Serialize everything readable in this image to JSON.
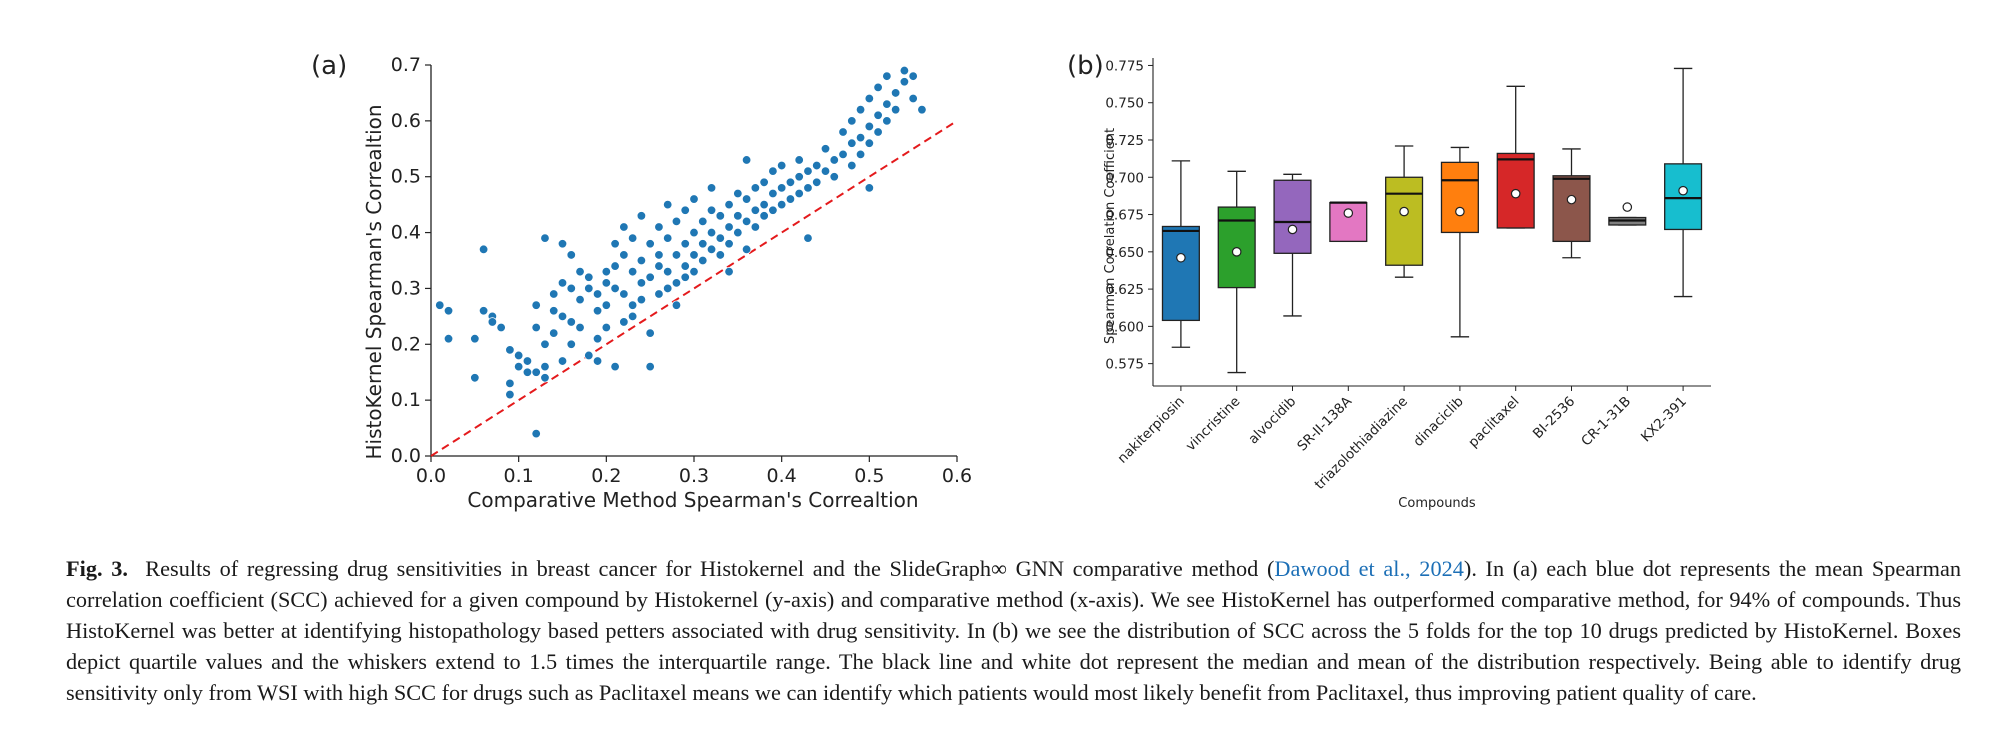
{
  "panel_labels": [
    "(a)",
    "(b)"
  ],
  "chart_data": [
    {
      "type": "scatter",
      "panel": "(a)",
      "title": "",
      "xlabel": "Comparative Method Spearman's Correaltion",
      "ylabel": "HistoKernel Spearman's Correaltion",
      "xlim": [
        0.0,
        0.6
      ],
      "ylim": [
        0.0,
        0.7
      ],
      "xticks": [
        "0.0",
        "0.1",
        "0.2",
        "0.3",
        "0.4",
        "0.5",
        "0.6"
      ],
      "yticks": [
        "0.0",
        "0.1",
        "0.2",
        "0.3",
        "0.4",
        "0.5",
        "0.6",
        "0.7"
      ],
      "point_color": "#1f77b4",
      "reference_line": {
        "x": [
          0.0,
          0.6
        ],
        "y": [
          0.0,
          0.6
        ],
        "color": "#e41a1c",
        "style": "dashed"
      },
      "points": [
        [
          0.01,
          0.27
        ],
        [
          0.02,
          0.26
        ],
        [
          0.02,
          0.21
        ],
        [
          0.05,
          0.14
        ],
        [
          0.05,
          0.21
        ],
        [
          0.06,
          0.26
        ],
        [
          0.07,
          0.25
        ],
        [
          0.06,
          0.37
        ],
        [
          0.07,
          0.24
        ],
        [
          0.08,
          0.23
        ],
        [
          0.09,
          0.19
        ],
        [
          0.09,
          0.13
        ],
        [
          0.09,
          0.11
        ],
        [
          0.1,
          0.18
        ],
        [
          0.1,
          0.16
        ],
        [
          0.11,
          0.17
        ],
        [
          0.11,
          0.15
        ],
        [
          0.12,
          0.23
        ],
        [
          0.12,
          0.27
        ],
        [
          0.12,
          0.04
        ],
        [
          0.12,
          0.15
        ],
        [
          0.13,
          0.16
        ],
        [
          0.13,
          0.2
        ],
        [
          0.13,
          0.39
        ],
        [
          0.13,
          0.14
        ],
        [
          0.14,
          0.22
        ],
        [
          0.14,
          0.26
        ],
        [
          0.14,
          0.29
        ],
        [
          0.15,
          0.38
        ],
        [
          0.15,
          0.17
        ],
        [
          0.15,
          0.31
        ],
        [
          0.15,
          0.25
        ],
        [
          0.16,
          0.2
        ],
        [
          0.16,
          0.24
        ],
        [
          0.16,
          0.3
        ],
        [
          0.16,
          0.36
        ],
        [
          0.17,
          0.28
        ],
        [
          0.17,
          0.33
        ],
        [
          0.17,
          0.23
        ],
        [
          0.18,
          0.3
        ],
        [
          0.18,
          0.18
        ],
        [
          0.18,
          0.32
        ],
        [
          0.19,
          0.26
        ],
        [
          0.19,
          0.21
        ],
        [
          0.19,
          0.29
        ],
        [
          0.19,
          0.17
        ],
        [
          0.2,
          0.33
        ],
        [
          0.2,
          0.31
        ],
        [
          0.2,
          0.27
        ],
        [
          0.2,
          0.23
        ],
        [
          0.21,
          0.34
        ],
        [
          0.21,
          0.3
        ],
        [
          0.21,
          0.38
        ],
        [
          0.21,
          0.16
        ],
        [
          0.22,
          0.24
        ],
        [
          0.22,
          0.29
        ],
        [
          0.22,
          0.36
        ],
        [
          0.22,
          0.41
        ],
        [
          0.23,
          0.27
        ],
        [
          0.23,
          0.33
        ],
        [
          0.23,
          0.25
        ],
        [
          0.23,
          0.39
        ],
        [
          0.24,
          0.31
        ],
        [
          0.24,
          0.35
        ],
        [
          0.24,
          0.28
        ],
        [
          0.24,
          0.43
        ],
        [
          0.25,
          0.22
        ],
        [
          0.25,
          0.32
        ],
        [
          0.25,
          0.38
        ],
        [
          0.25,
          0.16
        ],
        [
          0.26,
          0.29
        ],
        [
          0.26,
          0.36
        ],
        [
          0.26,
          0.41
        ],
        [
          0.26,
          0.34
        ],
        [
          0.27,
          0.3
        ],
        [
          0.27,
          0.39
        ],
        [
          0.27,
          0.33
        ],
        [
          0.27,
          0.45
        ],
        [
          0.28,
          0.27
        ],
        [
          0.28,
          0.36
        ],
        [
          0.28,
          0.42
        ],
        [
          0.28,
          0.31
        ],
        [
          0.29,
          0.34
        ],
        [
          0.29,
          0.38
        ],
        [
          0.29,
          0.44
        ],
        [
          0.29,
          0.32
        ],
        [
          0.3,
          0.36
        ],
        [
          0.3,
          0.4
        ],
        [
          0.3,
          0.46
        ],
        [
          0.3,
          0.33
        ],
        [
          0.31,
          0.38
        ],
        [
          0.31,
          0.42
        ],
        [
          0.31,
          0.35
        ],
        [
          0.32,
          0.4
        ],
        [
          0.32,
          0.44
        ],
        [
          0.32,
          0.37
        ],
        [
          0.32,
          0.48
        ],
        [
          0.33,
          0.39
        ],
        [
          0.33,
          0.43
        ],
        [
          0.33,
          0.36
        ],
        [
          0.34,
          0.41
        ],
        [
          0.34,
          0.45
        ],
        [
          0.34,
          0.38
        ],
        [
          0.34,
          0.33
        ],
        [
          0.35,
          0.43
        ],
        [
          0.35,
          0.47
        ],
        [
          0.35,
          0.4
        ],
        [
          0.36,
          0.42
        ],
        [
          0.36,
          0.46
        ],
        [
          0.36,
          0.37
        ],
        [
          0.36,
          0.53
        ],
        [
          0.37,
          0.44
        ],
        [
          0.37,
          0.48
        ],
        [
          0.37,
          0.41
        ],
        [
          0.38,
          0.45
        ],
        [
          0.38,
          0.49
        ],
        [
          0.38,
          0.43
        ],
        [
          0.39,
          0.47
        ],
        [
          0.39,
          0.51
        ],
        [
          0.39,
          0.44
        ],
        [
          0.4,
          0.48
        ],
        [
          0.4,
          0.45
        ],
        [
          0.4,
          0.52
        ],
        [
          0.41,
          0.49
        ],
        [
          0.41,
          0.46
        ],
        [
          0.42,
          0.5
        ],
        [
          0.42,
          0.47
        ],
        [
          0.42,
          0.53
        ],
        [
          0.43,
          0.51
        ],
        [
          0.43,
          0.48
        ],
        [
          0.43,
          0.39
        ],
        [
          0.44,
          0.52
        ],
        [
          0.44,
          0.49
        ],
        [
          0.45,
          0.51
        ],
        [
          0.45,
          0.55
        ],
        [
          0.46,
          0.53
        ],
        [
          0.46,
          0.5
        ],
        [
          0.47,
          0.54
        ],
        [
          0.47,
          0.58
        ],
        [
          0.48,
          0.56
        ],
        [
          0.48,
          0.52
        ],
        [
          0.48,
          0.6
        ],
        [
          0.49,
          0.57
        ],
        [
          0.49,
          0.54
        ],
        [
          0.49,
          0.62
        ],
        [
          0.5,
          0.59
        ],
        [
          0.5,
          0.56
        ],
        [
          0.5,
          0.64
        ],
        [
          0.5,
          0.48
        ],
        [
          0.51,
          0.61
        ],
        [
          0.51,
          0.58
        ],
        [
          0.51,
          0.66
        ],
        [
          0.52,
          0.63
        ],
        [
          0.52,
          0.6
        ],
        [
          0.52,
          0.68
        ],
        [
          0.53,
          0.65
        ],
        [
          0.53,
          0.62
        ],
        [
          0.54,
          0.67
        ],
        [
          0.54,
          0.69
        ],
        [
          0.55,
          0.68
        ],
        [
          0.55,
          0.64
        ],
        [
          0.56,
          0.62
        ]
      ]
    },
    {
      "type": "box",
      "panel": "(b)",
      "title": "",
      "xlabel": "Compounds",
      "ylabel": "Spearman Correlation Coefficient",
      "ylim": [
        0.56,
        0.78
      ],
      "yticks": [
        "0.575",
        "0.600",
        "0.625",
        "0.650",
        "0.675",
        "0.700",
        "0.725",
        "0.750",
        "0.775"
      ],
      "categories": [
        "nakiterpiosin",
        "vincristine",
        "alvocidib",
        "SR-II-138A",
        "triazolothiadiazine",
        "dinaciclib",
        "paclitaxel",
        "BI-2536",
        "CR-1-31B",
        "KX2-391"
      ],
      "colors": [
        "#1f77b4",
        "#2ca02c",
        "#9467bd",
        "#e377c2",
        "#bcbd22",
        "#ff7f0e",
        "#d62728",
        "#8c564b",
        "#7f7f7f",
        "#17becf"
      ],
      "boxes": [
        {
          "whisker_low": 0.586,
          "q1": 0.604,
          "median": 0.664,
          "q3": 0.667,
          "whisker_high": 0.711,
          "mean": 0.646
        },
        {
          "whisker_low": 0.569,
          "q1": 0.626,
          "median": 0.671,
          "q3": 0.68,
          "whisker_high": 0.704,
          "mean": 0.65
        },
        {
          "whisker_low": 0.607,
          "q1": 0.649,
          "median": 0.67,
          "q3": 0.698,
          "whisker_high": 0.702,
          "mean": 0.665
        },
        {
          "whisker_low": 0.657,
          "q1": 0.657,
          "median": 0.683,
          "q3": 0.683,
          "whisker_high": 0.683,
          "mean": 0.676
        },
        {
          "whisker_low": 0.633,
          "q1": 0.641,
          "median": 0.689,
          "q3": 0.7,
          "whisker_high": 0.721,
          "mean": 0.677
        },
        {
          "whisker_low": 0.593,
          "q1": 0.663,
          "median": 0.698,
          "q3": 0.71,
          "whisker_high": 0.72,
          "mean": 0.677
        },
        {
          "whisker_low": 0.666,
          "q1": 0.666,
          "median": 0.712,
          "q3": 0.716,
          "whisker_high": 0.761,
          "mean": 0.689
        },
        {
          "whisker_low": 0.646,
          "q1": 0.657,
          "median": 0.699,
          "q3": 0.701,
          "whisker_high": 0.719,
          "mean": 0.685
        },
        {
          "whisker_low": 0.668,
          "q1": 0.668,
          "median": 0.671,
          "q3": 0.673,
          "whisker_high": 0.673,
          "mean": 0.68
        },
        {
          "whisker_low": 0.62,
          "q1": 0.665,
          "median": 0.686,
          "q3": 0.709,
          "whisker_high": 0.773,
          "mean": 0.691
        }
      ]
    }
  ],
  "caption": {
    "label": "Fig. 3.",
    "text_before_link": "Results of regressing drug sensitivities in breast cancer for Histokernel and the SlideGraph∞ GNN comparative method (",
    "link_text": "Dawood et al., 2024",
    "text_after_link": "). In (a) each blue dot represents the mean Spearman correlation coefficient (SCC) achieved for a given compound by Histokernel (y-axis) and comparative method (x-axis). We see HistoKernel has outperformed comparative method, for 94% of compounds. Thus HistoKernel was better at identifying histopathology based petters associated with drug sensitivity. In (b) we see the distribution of SCC across the 5 folds for the top 10 drugs predicted by HistoKernel. Boxes depict quartile values and the whiskers extend to 1.5 times the interquartile range. The black line and white dot represent the median and mean of the distribution respectively. Being able to identify drug sensitivity only from WSI with high SCC for drugs such as Paclitaxel means we can identify which patients would most likely benefit from Paclitaxel, thus improving patient quality of care."
  }
}
